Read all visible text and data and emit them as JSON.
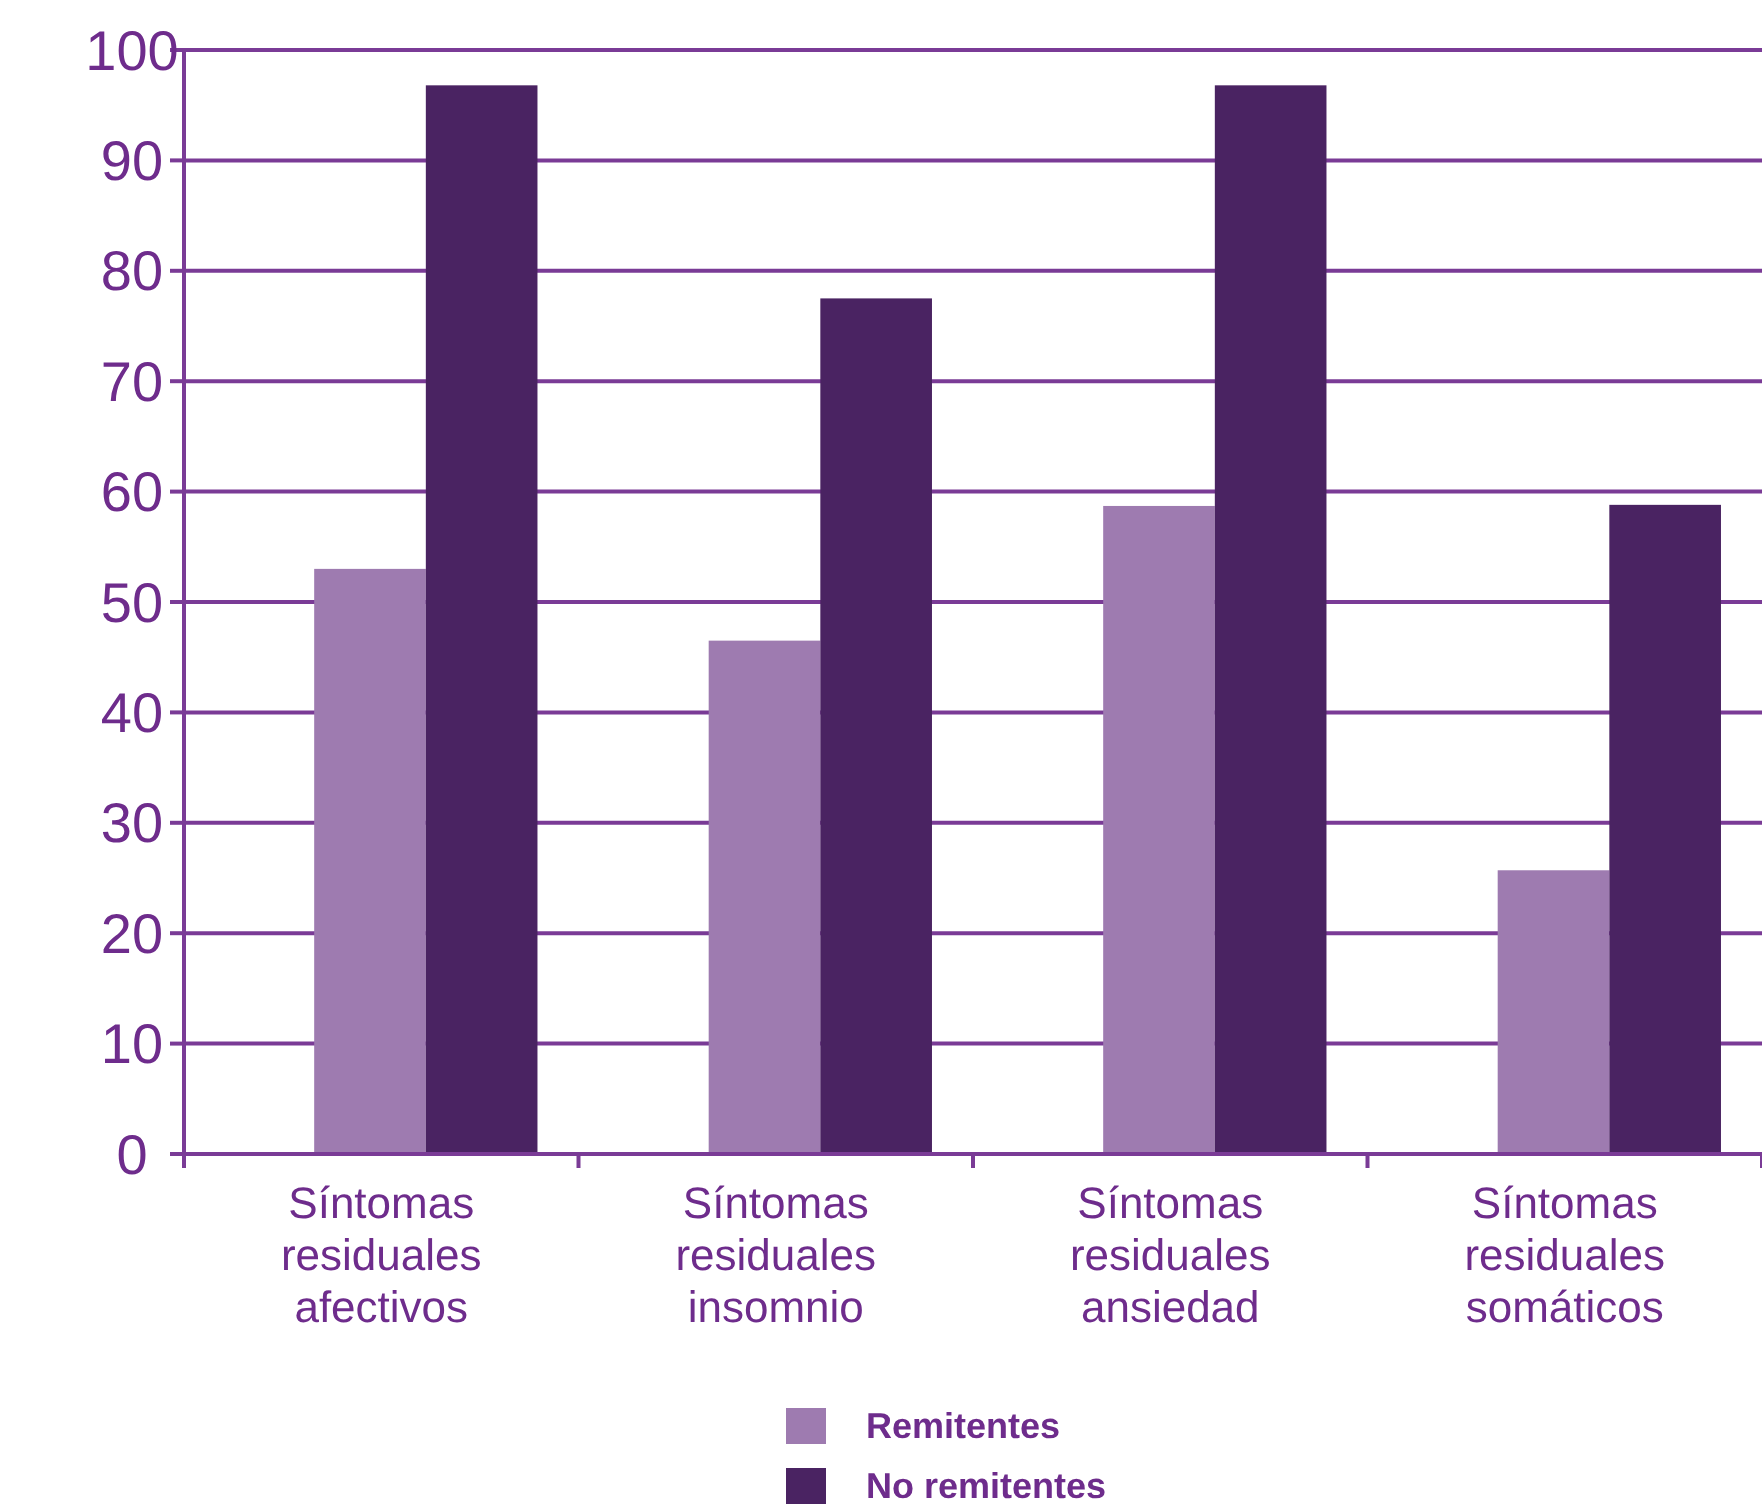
{
  "chart_data": {
    "type": "bar",
    "categories": [
      "Síntomas residuales afectivos",
      "Síntomas residuales insomnio",
      "Síntomas residuales ansiedad",
      "Síntomas residuales somáticos"
    ],
    "series": [
      {
        "name": "Remitentes",
        "color": "#9e7bb0",
        "values": [
          53,
          46.5,
          58.7,
          25.7
        ]
      },
      {
        "name": "No remitentes",
        "color": "#4a2362",
        "values": [
          96.8,
          77.5,
          96.8,
          58.8
        ]
      }
    ],
    "ylim": [
      0,
      100
    ],
    "yticks": [
      0,
      10,
      20,
      30,
      40,
      50,
      60,
      70,
      80,
      90,
      100
    ],
    "grid": "y",
    "legend": "bottom"
  }
}
